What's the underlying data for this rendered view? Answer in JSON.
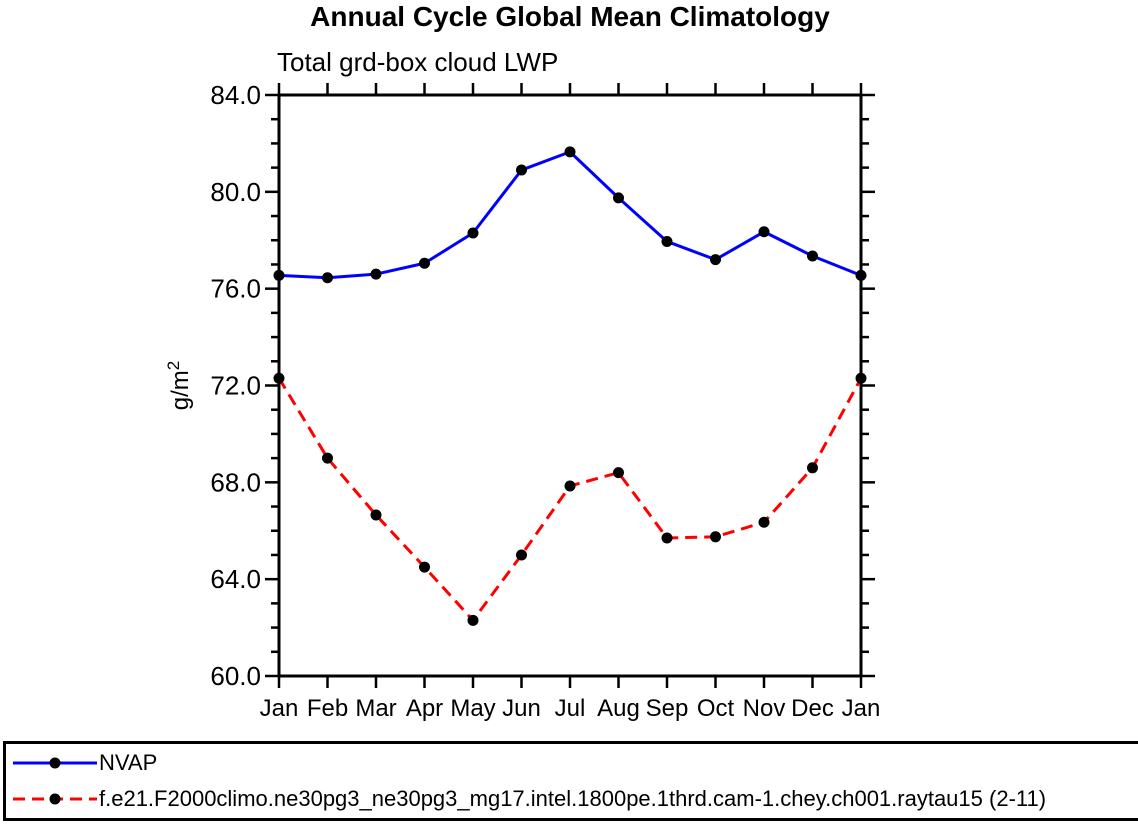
{
  "header": {
    "title": "Annual Cycle Global Mean Climatology",
    "subtitle": "Total grd-box cloud LWP"
  },
  "chart_data": {
    "type": "line",
    "title": "Annual Cycle Global Mean Climatology",
    "subtitle": "Total grd-box cloud LWP",
    "ylabel": "g/m²",
    "ylabel_base": "g/m",
    "ylabel_sup": "2",
    "categories": [
      "Jan",
      "Feb",
      "Mar",
      "Apr",
      "May",
      "Jun",
      "Jul",
      "Aug",
      "Sep",
      "Oct",
      "Nov",
      "Dec",
      "Jan"
    ],
    "series": [
      {
        "name": "NVAP",
        "color": "#0000ff",
        "line_style": "solid",
        "marker": "filled-circle",
        "marker_color": "#000000",
        "values": [
          76.55,
          76.45,
          76.6,
          77.05,
          78.3,
          80.9,
          81.65,
          79.75,
          77.95,
          77.2,
          78.35,
          77.35,
          76.55
        ]
      },
      {
        "name": "f.e21.F2000climo.ne30pg3_ne30pg3_mg17.intel.1800pe.1thrd.cam-1.chey.ch001.raytau15 (2-11)",
        "color": "#ff0000",
        "line_style": "dashed",
        "marker": "filled-circle",
        "marker_color": "#000000",
        "values": [
          72.3,
          69.0,
          66.65,
          64.5,
          62.3,
          65.0,
          67.85,
          68.4,
          65.7,
          65.75,
          66.35,
          68.6,
          72.3
        ]
      }
    ],
    "ylim": [
      60.0,
      84.0
    ],
    "yticks": [
      60.0,
      64.0,
      68.0,
      72.0,
      76.0,
      80.0,
      84.0
    ],
    "ytick_labels": [
      "60.0",
      "64.0",
      "68.0",
      "72.0",
      "76.0",
      "80.0",
      "84.0"
    ],
    "y_minor_tick_interval": 1.0,
    "grid": false,
    "frame": "box-with-outward-ticks",
    "legend_position": "bottom-box"
  }
}
